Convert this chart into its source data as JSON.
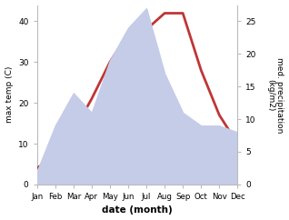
{
  "months": [
    "Jan",
    "Feb",
    "Mar",
    "Apr",
    "May",
    "Jun",
    "Jul",
    "Aug",
    "Sep",
    "Oct",
    "Nov",
    "Dec"
  ],
  "temperature": [
    4,
    7,
    13,
    21,
    30,
    37,
    38,
    42,
    42,
    28,
    17,
    10
  ],
  "precipitation_kg": [
    2,
    9,
    14,
    11,
    19,
    24,
    27,
    17,
    11,
    9,
    9,
    8
  ],
  "temp_color": "#c03535",
  "precip_fill_color": "#c5cce8",
  "xlabel": "date (month)",
  "ylabel_left": "max temp (C)",
  "ylabel_right": "med. precipitation\n(kg/m2)",
  "ylim_left": [
    0,
    44
  ],
  "ylim_right": [
    0,
    27.5
  ],
  "yticks_left": [
    0,
    10,
    20,
    30,
    40
  ],
  "yticks_right": [
    0,
    5,
    10,
    15,
    20,
    25
  ],
  "background_color": "#ffffff",
  "spine_color": "#bbbbbb",
  "temp_linewidth": 2.0,
  "label_fontsize": 6.5,
  "tick_fontsize": 6.5,
  "xlabel_fontsize": 7.5,
  "xtick_fontsize": 6.2
}
